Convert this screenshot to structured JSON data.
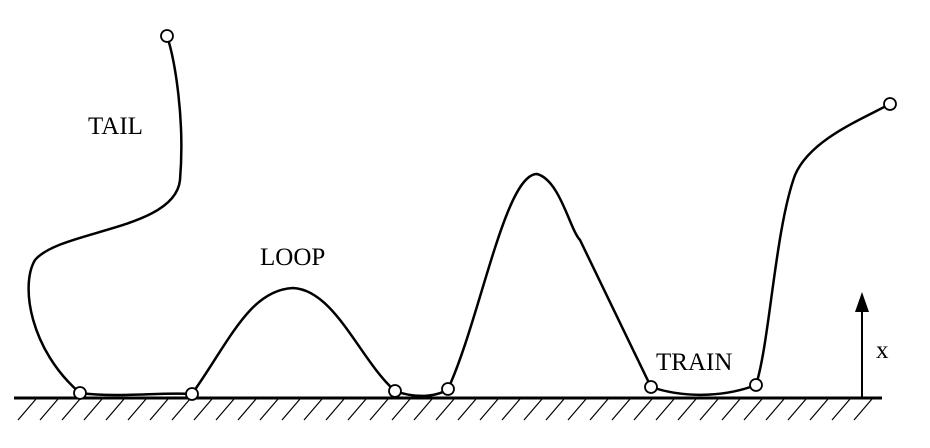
{
  "labels": {
    "tail": "TAIL",
    "loop": "LOOP",
    "train": "TRAIN",
    "axis": "x"
  }
}
